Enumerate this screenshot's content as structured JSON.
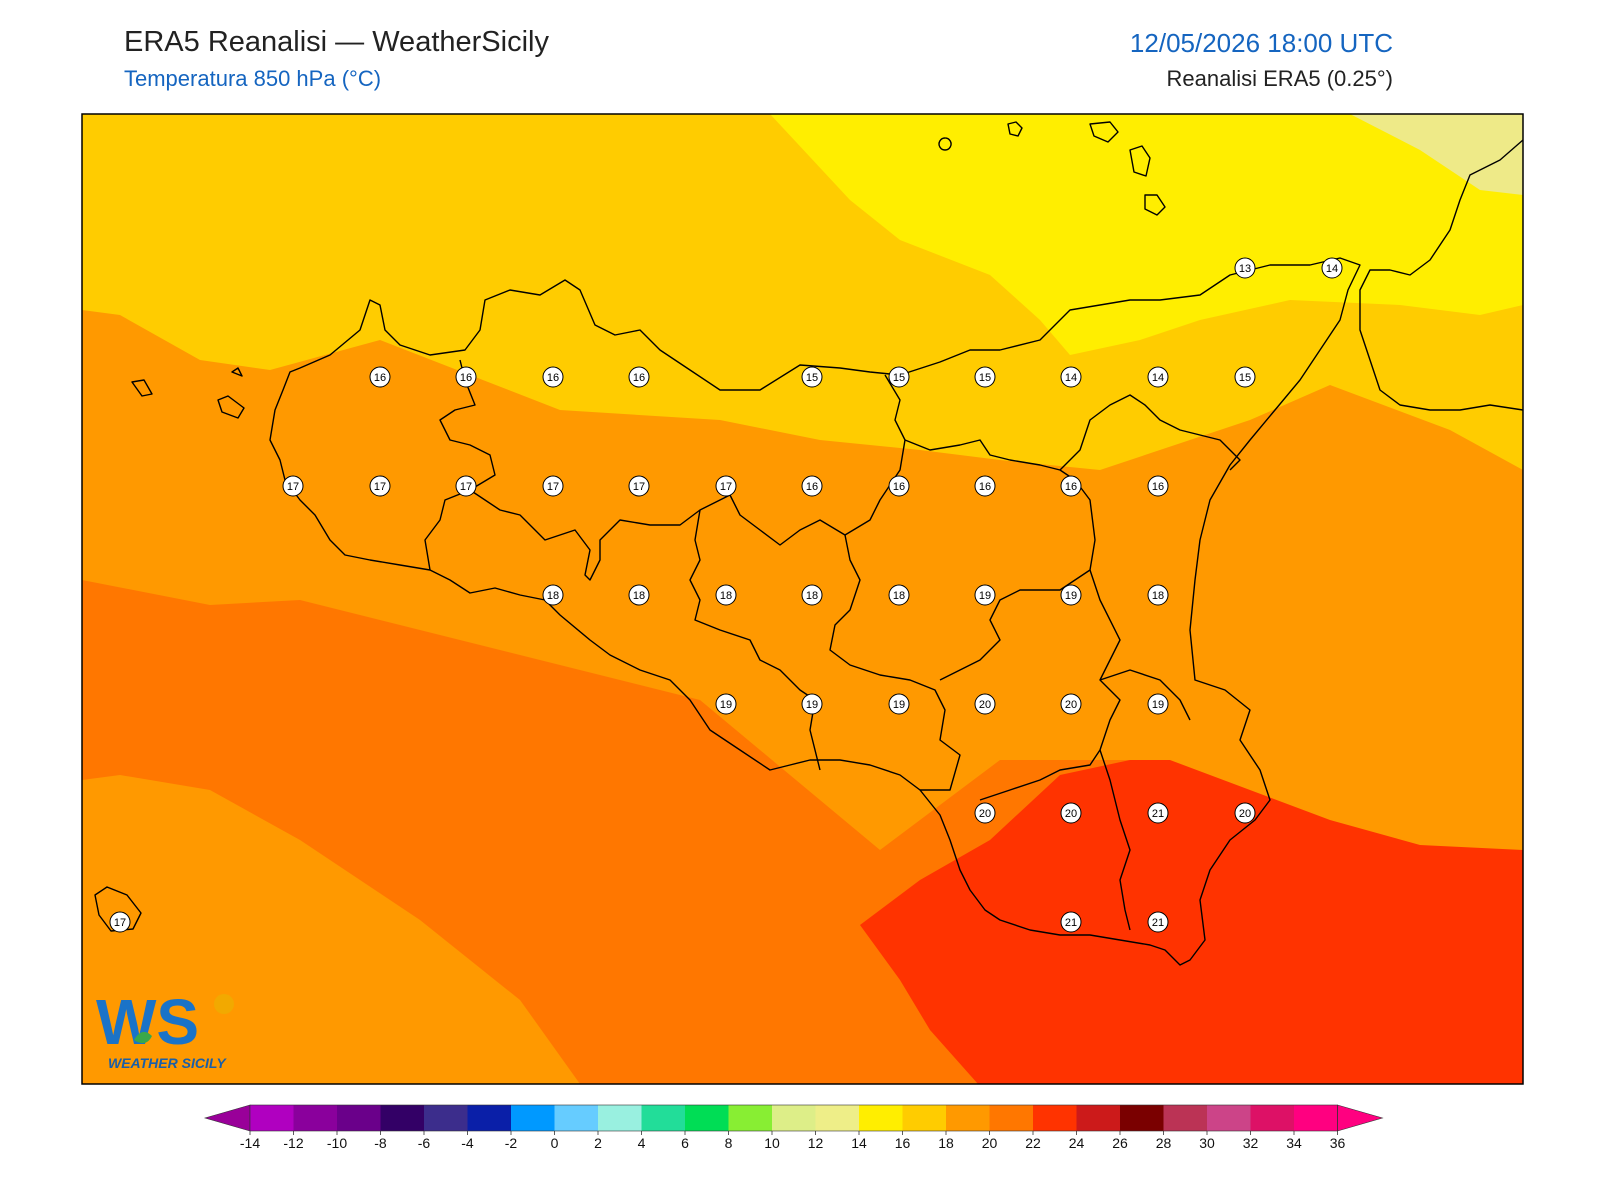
{
  "header": {
    "title": "ERA5 Reanalisi — WeatherSicily",
    "subtitle": "Temperatura 850 hPa (°C)",
    "datetime": "12/05/2026 18:00 UTC",
    "source": "Reanalisi ERA5 (0.25°)"
  },
  "logo": {
    "initials": "WS",
    "name": "WEATHER SICILY"
  },
  "colorbar": {
    "ticks": [
      "-14",
      "-12",
      "-10",
      "-8",
      "-6",
      "-4",
      "-2",
      "0",
      "2",
      "4",
      "6",
      "8",
      "10",
      "12",
      "14",
      "16",
      "18",
      "20",
      "22",
      "24",
      "26",
      "28",
      "30",
      "32",
      "34",
      "36"
    ],
    "colors": [
      "#b000c0",
      "#8a009c",
      "#6a008a",
      "#330066",
      "#3c2d8c",
      "#0a1fa8",
      "#0099ff",
      "#66ccff",
      "#99f0e0",
      "#22dd99",
      "#00dd55",
      "#88ee33",
      "#ddee88",
      "#eeee88",
      "#ffee00",
      "#ffcc00",
      "#ff9900",
      "#ff7700",
      "#ff3300",
      "#cc1a1a",
      "#7a0000",
      "#bb3355",
      "#cc4488",
      "#dd1166",
      "#ff0080"
    ],
    "under_color": "#990099",
    "over_color": "#ff0080"
  },
  "stations": [
    {
      "v": "13"
    },
    {
      "v": "14"
    },
    {
      "v": "16"
    },
    {
      "v": "16"
    },
    {
      "v": "16"
    },
    {
      "v": "16"
    },
    {
      "v": "15"
    },
    {
      "v": "15"
    },
    {
      "v": "15"
    },
    {
      "v": "14"
    },
    {
      "v": "14"
    },
    {
      "v": "15"
    },
    {
      "v": "17"
    },
    {
      "v": "17"
    },
    {
      "v": "17"
    },
    {
      "v": "17"
    },
    {
      "v": "17"
    },
    {
      "v": "17"
    },
    {
      "v": "16"
    },
    {
      "v": "16"
    },
    {
      "v": "16"
    },
    {
      "v": "16"
    },
    {
      "v": "16"
    },
    {
      "v": "18"
    },
    {
      "v": "18"
    },
    {
      "v": "18"
    },
    {
      "v": "18"
    },
    {
      "v": "18"
    },
    {
      "v": "19"
    },
    {
      "v": "19"
    },
    {
      "v": "18"
    },
    {
      "v": "19"
    },
    {
      "v": "19"
    },
    {
      "v": "19"
    },
    {
      "v": "20"
    },
    {
      "v": "20"
    },
    {
      "v": "19"
    },
    {
      "v": "20"
    },
    {
      "v": "20"
    },
    {
      "v": "21"
    },
    {
      "v": "20"
    },
    {
      "v": "21"
    },
    {
      "v": "21"
    },
    {
      "v": "17"
    }
  ]
}
